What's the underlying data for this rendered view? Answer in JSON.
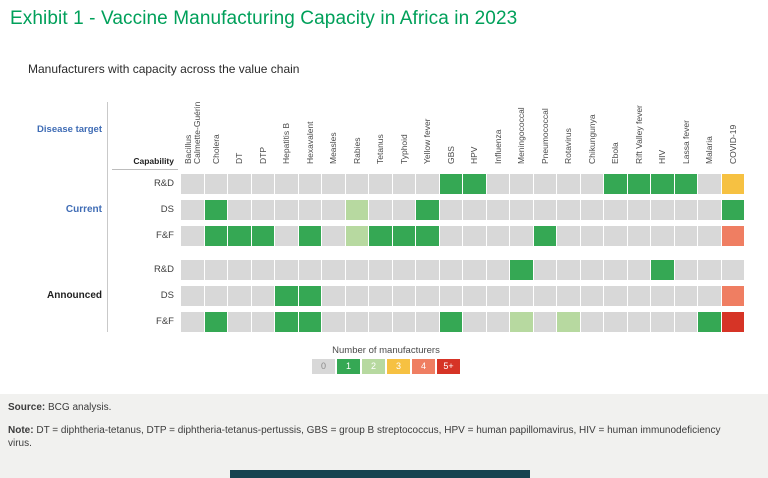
{
  "title": "Exhibit 1 - Vaccine Manufacturing Capacity in Africa in 2023",
  "subtitle": "Manufacturers with capacity across the value chain",
  "axis": {
    "disease_target_label": "Disease target",
    "capability_label": "Capability"
  },
  "colors": {
    "title_green": "#00a05a",
    "label_blue": "#3f6cb5",
    "footer_bar": "#164350",
    "cell_gap": "#ffffff"
  },
  "chart_data": {
    "type": "heatmap",
    "title": "Exhibit 1 - Vaccine Manufacturing Capacity in Africa in 2023",
    "subtitle": "Manufacturers with capacity across the value chain",
    "x_axis_label": "Disease target",
    "y_axis_label": "Capability",
    "columns": [
      "Bacillus\nCalmette-Guérin",
      "Cholera",
      "DT",
      "DTP",
      "Hepatitis B",
      "Hexavalent",
      "Measles",
      "Rabies",
      "Tetanus",
      "Typhoid",
      "Yellow fever",
      "GBS",
      "HPV",
      "Influenza",
      "Meningococcal",
      "Pneumococcal",
      "Rotavirus",
      "Chikungunya",
      "Ebola",
      "Rift Valley fever",
      "HIV",
      "Lassa fever",
      "Malaria",
      "COVID-19"
    ],
    "value_scale": [
      "0",
      "1",
      "2",
      "3",
      "4",
      "5+"
    ],
    "row_groups": [
      {
        "label": "Current",
        "rows": [
          {
            "label": "R&D",
            "values": [
              0,
              0,
              0,
              0,
              0,
              0,
              0,
              0,
              0,
              0,
              0,
              1,
              1,
              0,
              0,
              0,
              0,
              0,
              1,
              1,
              1,
              1,
              0,
              3
            ]
          },
          {
            "label": "DS",
            "values": [
              0,
              1,
              0,
              0,
              0,
              0,
              0,
              2,
              0,
              0,
              1,
              0,
              0,
              0,
              0,
              0,
              0,
              0,
              0,
              0,
              0,
              0,
              0,
              1
            ]
          },
          {
            "label": "F&F",
            "values": [
              0,
              1,
              1,
              1,
              0,
              1,
              0,
              2,
              1,
              1,
              1,
              0,
              0,
              0,
              0,
              1,
              0,
              0,
              0,
              0,
              0,
              0,
              0,
              4
            ]
          }
        ]
      },
      {
        "label": "Announced",
        "rows": [
          {
            "label": "R&D",
            "values": [
              0,
              0,
              0,
              0,
              0,
              0,
              0,
              0,
              0,
              0,
              0,
              0,
              0,
              0,
              1,
              0,
              0,
              0,
              0,
              0,
              1,
              0,
              0,
              0
            ]
          },
          {
            "label": "DS",
            "values": [
              0,
              0,
              0,
              0,
              1,
              1,
              0,
              0,
              0,
              0,
              0,
              0,
              0,
              0,
              0,
              0,
              0,
              0,
              0,
              0,
              0,
              0,
              0,
              4
            ]
          },
          {
            "label": "F&F",
            "values": [
              0,
              1,
              0,
              0,
              1,
              1,
              0,
              0,
              0,
              0,
              0,
              1,
              0,
              0,
              2,
              0,
              2,
              0,
              0,
              0,
              0,
              0,
              1,
              5
            ]
          }
        ]
      }
    ],
    "legend": {
      "title": "Number of manufacturers",
      "bins": [
        {
          "label": "0",
          "color": "#d8d8d8"
        },
        {
          "label": "1",
          "color": "#35a854"
        },
        {
          "label": "2",
          "color": "#b7d9a0"
        },
        {
          "label": "3",
          "color": "#f6c142"
        },
        {
          "label": "4",
          "color": "#ef7e62"
        },
        {
          "label": "5+",
          "color": "#d63426"
        }
      ]
    }
  },
  "footer": {
    "source_label": "Source:",
    "source_text": "BCG analysis.",
    "note_label": "Note:",
    "note_text": "DT = diphtheria-tetanus, DTP = diphtheria-tetanus-pertussis, GBS = group B streptococcus, HPV = human papillomavirus, HIV = human immunodeficiency virus."
  }
}
